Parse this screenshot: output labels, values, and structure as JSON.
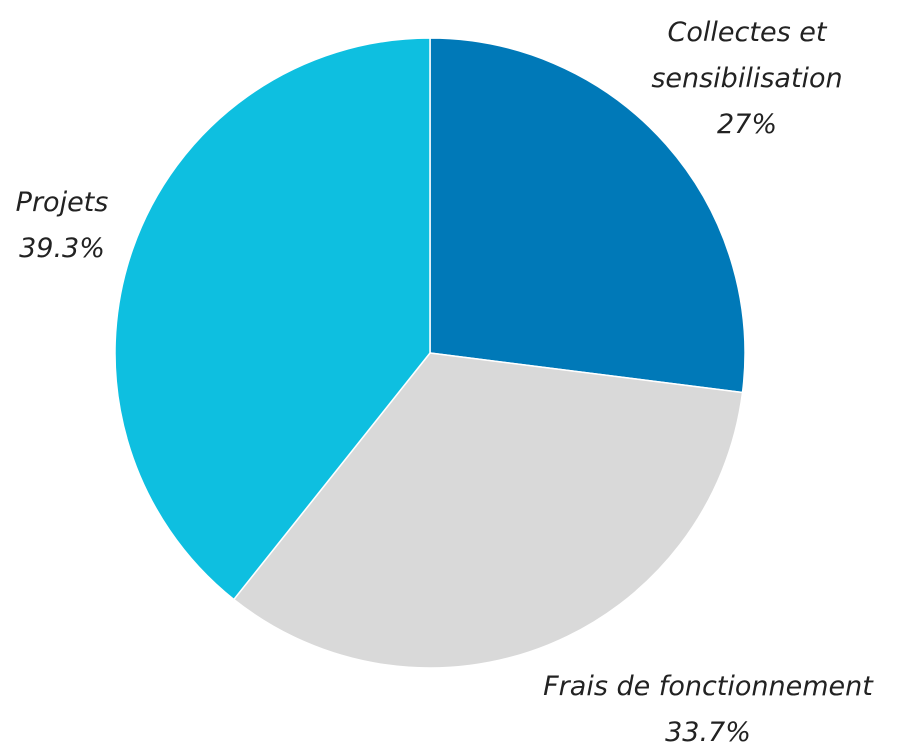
{
  "chart_data": {
    "type": "pie",
    "categories": [
      "Collectes et sensibilisation",
      "Frais de fonctionnement",
      "Projets"
    ],
    "values": [
      27,
      33.7,
      39.3
    ],
    "value_labels": [
      "27%",
      "33.7%",
      "39.3%"
    ],
    "colors": [
      "#0079b8",
      "#d9d9d9",
      "#0ebfe0"
    ]
  }
}
